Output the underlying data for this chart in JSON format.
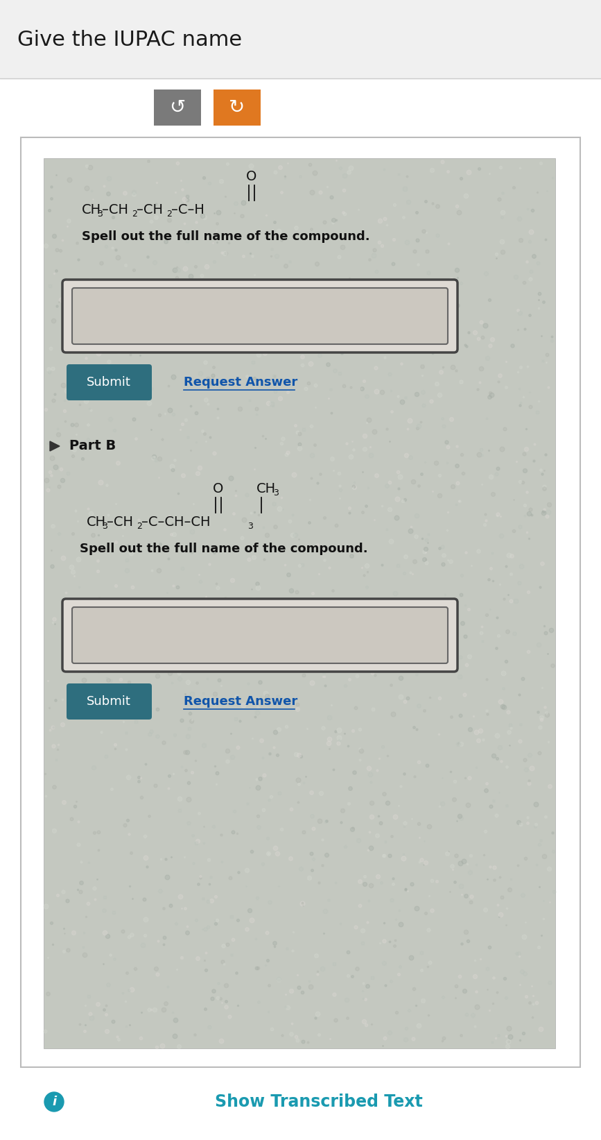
{
  "title": "Give the IUPAC name",
  "title_fontsize": 22,
  "title_color": "#1a1a1a",
  "page_bg": "#ffffff",
  "btn_color": "#2e6e7e",
  "btn_gray_color": "#7a7a7a",
  "btn_orange_color": "#e07820",
  "spell_text": "Spell out the full name of the compound.",
  "part_b_label": "Part B",
  "request_answer_text": "Request Answer",
  "submit_text": "Submit",
  "show_transcribed": "Show Transcribed Text"
}
